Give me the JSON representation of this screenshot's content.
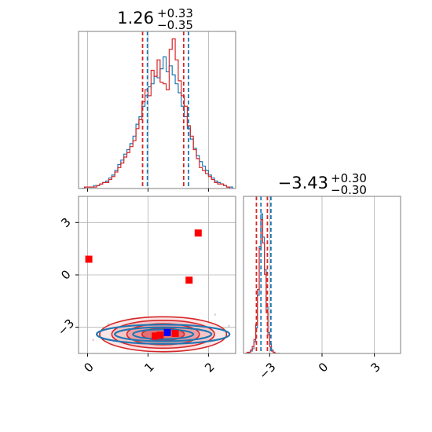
{
  "chart_data": [
    {
      "type": "histogram",
      "panel": "top-left",
      "title_main": "1.26",
      "title_sup": "+0.33",
      "title_sub": "−0.35",
      "xlim": [
        -0.15,
        2.45
      ],
      "xticks": [
        0,
        1,
        2
      ],
      "grid": true,
      "bin_edges": [
        -0.1,
        -0.05,
        0.0,
        0.05,
        0.1,
        0.15,
        0.2,
        0.25,
        0.3,
        0.35,
        0.4,
        0.45,
        0.5,
        0.55,
        0.6,
        0.65,
        0.7,
        0.75,
        0.8,
        0.85,
        0.9,
        0.95,
        1.0,
        1.05,
        1.1,
        1.15,
        1.2,
        1.25,
        1.3,
        1.35,
        1.4,
        1.45,
        1.5,
        1.55,
        1.6,
        1.65,
        1.7,
        1.75,
        1.8,
        1.85,
        1.9,
        1.95,
        2.0,
        2.05,
        2.1,
        2.15,
        2.2,
        2.25,
        2.3,
        2.35,
        2.4
      ],
      "series": [
        {
          "color": "#1f77b4",
          "counts": [
            0,
            1,
            1,
            1,
            2,
            2,
            3,
            4,
            5,
            7,
            9,
            12,
            16,
            19,
            23,
            26,
            30,
            35,
            43,
            48,
            55,
            62,
            68,
            70,
            75,
            74,
            80,
            88,
            78,
            82,
            76,
            70,
            64,
            55,
            48,
            40,
            33,
            27,
            22,
            18,
            15,
            12,
            9,
            7,
            5,
            4,
            3,
            2,
            1,
            1
          ]
        },
        {
          "color": "#d62728",
          "counts": [
            0,
            1,
            1,
            1,
            1,
            2,
            3,
            4,
            4,
            6,
            8,
            11,
            14,
            17,
            21,
            24,
            28,
            32,
            40,
            46,
            58,
            66,
            62,
            79,
            75,
            86,
            71,
            70,
            66,
            93,
            100,
            86,
            72,
            62,
            55,
            42,
            35,
            26,
            20,
            14,
            12,
            10,
            8,
            6,
            4,
            3,
            3,
            2,
            1,
            0
          ]
        }
      ],
      "quantile_lines": [
        {
          "color": "#d62728",
          "values": [
            0.91,
            1.59
          ]
        },
        {
          "color": "#1f77b4",
          "values": [
            0.99,
            1.67
          ]
        }
      ]
    },
    {
      "type": "scatter",
      "panel": "bottom-left",
      "xlim": [
        -0.15,
        2.45
      ],
      "ylim": [
        -4.5,
        4.5
      ],
      "xticks": [
        0,
        1,
        2
      ],
      "yticks": [
        3,
        0,
        -3
      ],
      "grid": true,
      "red_points": [
        {
          "x": 0.02,
          "y": 0.9
        },
        {
          "x": 1.68,
          "y": -0.3
        },
        {
          "x": 1.83,
          "y": 2.4
        },
        {
          "x": 1.12,
          "y": -3.5
        },
        {
          "x": 1.2,
          "y": -3.45
        },
        {
          "x": 1.45,
          "y": -3.35
        }
      ],
      "blue_points": [
        {
          "x": 1.32,
          "y": -3.3
        }
      ],
      "density_center": {
        "x": 1.25,
        "y": -3.4
      },
      "red_contour_half_widths": [
        {
          "x": 0.35,
          "y": 0.35
        },
        {
          "x": 0.6,
          "y": 0.6
        },
        {
          "x": 0.85,
          "y": 0.8
        },
        {
          "x": 1.05,
          "y": 1.0
        }
      ],
      "blue_contour_half_widths": [
        {
          "x": 0.5,
          "y": 0.28
        },
        {
          "x": 0.8,
          "y": 0.4
        },
        {
          "x": 1.1,
          "y": 0.55
        }
      ]
    },
    {
      "type": "histogram",
      "panel": "bottom-right",
      "title_main": "−3.43",
      "title_sup": "+0.30",
      "title_sub": "−0.30",
      "xlim": [
        -4.5,
        4.5
      ],
      "xticks": [
        -3,
        0,
        3
      ],
      "grid": true,
      "bin_edges": [
        -4.4,
        -4.3,
        -4.2,
        -4.1,
        -4.0,
        -3.9,
        -3.8,
        -3.7,
        -3.6,
        -3.5,
        -3.4,
        -3.3,
        -3.2,
        -3.1,
        -3.0,
        -2.9,
        -2.8,
        -2.7,
        -2.6,
        -2.5,
        -2.4
      ],
      "series": [
        {
          "color": "#1f77b4",
          "counts": [
            0,
            0,
            1,
            2,
            4,
            10,
            22,
            50,
            92,
            120,
            100,
            72,
            40,
            18,
            8,
            3,
            1,
            0,
            0,
            0
          ]
        },
        {
          "color": "#d62728",
          "counts": [
            0,
            1,
            1,
            3,
            6,
            12,
            25,
            55,
            90,
            115,
            95,
            68,
            35,
            16,
            6,
            2,
            1,
            0,
            0,
            0
          ]
        }
      ],
      "quantile_lines": [
        {
          "color": "#d62728",
          "values": [
            -3.76,
            -3.13
          ]
        },
        {
          "color": "#1f77b4",
          "values": [
            -3.5,
            -2.93
          ]
        }
      ]
    }
  ]
}
